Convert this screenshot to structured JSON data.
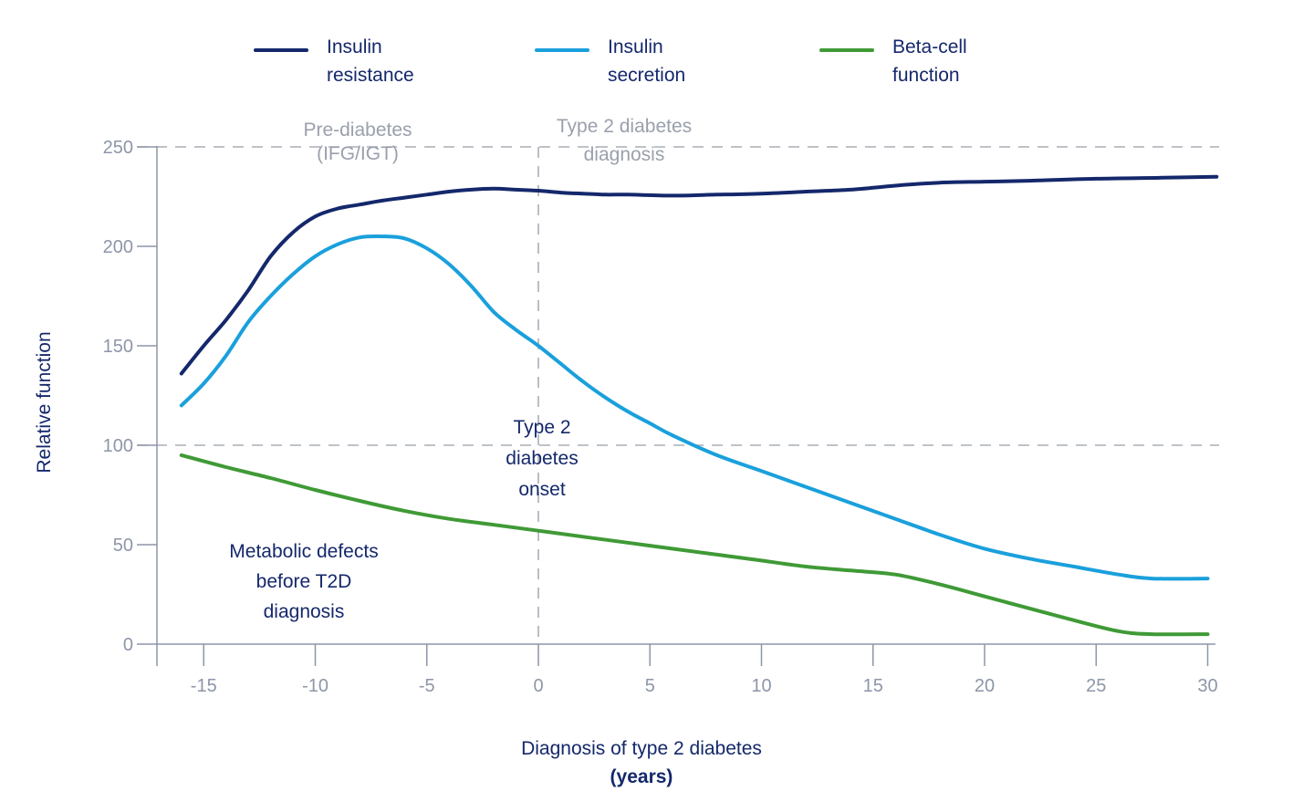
{
  "chart_data": {
    "type": "line",
    "xlabel": "Diagnosis of type 2 diabetes",
    "xlabel_unit": "(years)",
    "ylabel": "Relative function",
    "xlim": [
      -16.5,
      30.3
    ],
    "ylim": [
      0,
      250
    ],
    "x_ticks": [
      "-15",
      "-10",
      "-5",
      "0",
      "5",
      "10",
      "15",
      "20",
      "25",
      "30"
    ],
    "y_ticks": [
      "0",
      "50",
      "100",
      "150",
      "200",
      "250"
    ],
    "reference_lines": [
      {
        "axis": "y",
        "value": 250,
        "style": "dashed"
      },
      {
        "axis": "y",
        "value": 100,
        "style": "dashed"
      },
      {
        "axis": "x",
        "value": 0,
        "style": "dashed"
      }
    ],
    "legend": {
      "position": "top"
    },
    "series": [
      {
        "name": "Insulin resistance",
        "legend_lines": [
          "Insulin",
          "resistance"
        ],
        "color": "#14286b",
        "points": [
          [
            -16,
            136
          ],
          [
            -15,
            150
          ],
          [
            -14,
            163
          ],
          [
            -13,
            178
          ],
          [
            -12,
            195
          ],
          [
            -11,
            207
          ],
          [
            -10,
            215
          ],
          [
            -9,
            219
          ],
          [
            -8,
            221
          ],
          [
            -7,
            223
          ],
          [
            -6,
            224.5
          ],
          [
            -5,
            226
          ],
          [
            -4,
            227.5
          ],
          [
            -3,
            228.5
          ],
          [
            -2,
            229
          ],
          [
            -1,
            228.5
          ],
          [
            0,
            228
          ],
          [
            1,
            227
          ],
          [
            2,
            226.5
          ],
          [
            3,
            226
          ],
          [
            4,
            226
          ],
          [
            6,
            225.5
          ],
          [
            8,
            226
          ],
          [
            10,
            226.5
          ],
          [
            12,
            227.5
          ],
          [
            14,
            228.5
          ],
          [
            16,
            230.5
          ],
          [
            18,
            232
          ],
          [
            20,
            232.5
          ],
          [
            22,
            233
          ],
          [
            25,
            234
          ],
          [
            28,
            234.5
          ],
          [
            30.4,
            235
          ]
        ]
      },
      {
        "name": "Insulin secretion",
        "legend_lines": [
          "Insulin",
          "secretion"
        ],
        "color": "#1aa0dc",
        "points": [
          [
            -16,
            120
          ],
          [
            -15,
            131
          ],
          [
            -14,
            145
          ],
          [
            -13,
            162
          ],
          [
            -12,
            175
          ],
          [
            -11,
            186
          ],
          [
            -10,
            195
          ],
          [
            -9,
            201
          ],
          [
            -8,
            204.5
          ],
          [
            -7,
            205
          ],
          [
            -6,
            204
          ],
          [
            -5,
            199
          ],
          [
            -4,
            191
          ],
          [
            -3,
            180
          ],
          [
            -2,
            167
          ],
          [
            -1,
            158
          ],
          [
            0,
            150
          ],
          [
            1,
            141
          ],
          [
            2,
            132
          ],
          [
            3,
            124
          ],
          [
            4,
            117
          ],
          [
            5,
            111
          ],
          [
            6,
            105
          ],
          [
            8,
            95
          ],
          [
            10,
            87
          ],
          [
            12,
            79
          ],
          [
            14,
            71
          ],
          [
            16,
            63
          ],
          [
            18,
            55
          ],
          [
            20,
            48
          ],
          [
            22,
            43
          ],
          [
            24,
            39
          ],
          [
            26,
            35
          ],
          [
            27.5,
            33
          ],
          [
            30,
            33
          ]
        ]
      },
      {
        "name": "Beta-cell function",
        "legend_lines": [
          "Beta-cell",
          "function"
        ],
        "color": "#3f9a36",
        "points": [
          [
            -16,
            95
          ],
          [
            -14,
            89
          ],
          [
            -12,
            83.5
          ],
          [
            -10,
            77.5
          ],
          [
            -8,
            72
          ],
          [
            -6,
            67
          ],
          [
            -4,
            63
          ],
          [
            -2,
            60
          ],
          [
            0,
            57
          ],
          [
            2,
            54
          ],
          [
            4,
            51
          ],
          [
            6,
            48
          ],
          [
            8,
            45
          ],
          [
            10,
            42
          ],
          [
            12,
            39
          ],
          [
            14,
            37
          ],
          [
            16,
            35
          ],
          [
            18,
            30
          ],
          [
            20,
            24
          ],
          [
            22,
            18
          ],
          [
            24,
            12
          ],
          [
            26,
            6.5
          ],
          [
            27.5,
            5
          ],
          [
            30,
            5
          ]
        ]
      }
    ],
    "annotations": [
      {
        "id": "pre-diabetes",
        "lines": [
          "Pre-diabetes",
          "(IFG/IGT)"
        ],
        "tone": "grey"
      },
      {
        "id": "t2d-diagnosis",
        "lines": [
          "Type 2 diabetes",
          "diagnosis"
        ],
        "tone": "grey"
      },
      {
        "id": "t2d-onset",
        "lines": [
          "Type 2",
          "diabetes",
          "onset"
        ],
        "tone": "navy"
      },
      {
        "id": "metabolic-defects",
        "lines": [
          "Metabolic defects",
          "before T2D",
          "diagnosis"
        ],
        "tone": "navy"
      }
    ]
  }
}
